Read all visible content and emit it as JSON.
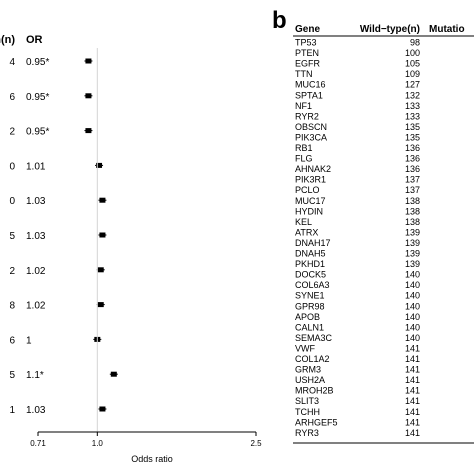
{
  "chart_data": [
    {
      "type": "scatter",
      "panel": "",
      "columns": [
        "n(n)",
        "OR"
      ],
      "xlabel": "Odds ratio",
      "x_ticks": [
        "0.71",
        "1.0",
        "2.5"
      ],
      "x_tick_values": [
        0.71,
        1.0,
        2.5
      ],
      "xscale": "log",
      "xlim": [
        0.71,
        2.5
      ],
      "reference_line": 1.0,
      "rows": [
        {
          "n": "4",
          "or_label": "0.95*",
          "or": 0.95
        },
        {
          "n": "6",
          "or_label": "0.95*",
          "or": 0.95
        },
        {
          "n": "2",
          "or_label": "0.95*",
          "or": 0.95
        },
        {
          "n": "0",
          "or_label": "1.01",
          "or": 1.01
        },
        {
          "n": "0",
          "or_label": "1.03",
          "or": 1.03
        },
        {
          "n": "5",
          "or_label": "1.03",
          "or": 1.03
        },
        {
          "n": "2",
          "or_label": "1.02",
          "or": 1.02
        },
        {
          "n": "8",
          "or_label": "1.02",
          "or": 1.02
        },
        {
          "n": "6",
          "or_label": "1",
          "or": 1.0
        },
        {
          "n": "5",
          "or_label": "1.1*",
          "or": 1.1
        },
        {
          "n": "1",
          "or_label": "1.03",
          "or": 1.03
        }
      ]
    },
    {
      "type": "table",
      "panel": "b",
      "columns": [
        "Gene",
        "Wild−type(n)",
        "Mutatio"
      ],
      "rows": [
        [
          "TP53",
          "98"
        ],
        [
          "PTEN",
          "100"
        ],
        [
          "EGFR",
          "105"
        ],
        [
          "TTN",
          "109"
        ],
        [
          "MUC16",
          "127"
        ],
        [
          "SPTA1",
          "132"
        ],
        [
          "NF1",
          "133"
        ],
        [
          "RYR2",
          "133"
        ],
        [
          "OBSCN",
          "135"
        ],
        [
          "PIK3CA",
          "135"
        ],
        [
          "RB1",
          "136"
        ],
        [
          "FLG",
          "136"
        ],
        [
          "AHNAK2",
          "136"
        ],
        [
          "PIK3R1",
          "137"
        ],
        [
          "PCLO",
          "137"
        ],
        [
          "MUC17",
          "138"
        ],
        [
          "HYDIN",
          "138"
        ],
        [
          "KEL",
          "138"
        ],
        [
          "ATRX",
          "139"
        ],
        [
          "DNAH17",
          "139"
        ],
        [
          "DNAH5",
          "139"
        ],
        [
          "PKHD1",
          "139"
        ],
        [
          "DOCK5",
          "140"
        ],
        [
          "COL6A3",
          "140"
        ],
        [
          "SYNE1",
          "140"
        ],
        [
          "GPR98",
          "140"
        ],
        [
          "APOB",
          "140"
        ],
        [
          "CALN1",
          "140"
        ],
        [
          "SEMA3C",
          "140"
        ],
        [
          "VWF",
          "141"
        ],
        [
          "COL1A2",
          "141"
        ],
        [
          "GRM3",
          "141"
        ],
        [
          "USH2A",
          "141"
        ],
        [
          "MROH2B",
          "141"
        ],
        [
          "SLIT3",
          "141"
        ],
        [
          "TCHH",
          "141"
        ],
        [
          "ARHGEF5",
          "141"
        ],
        [
          "RYR3",
          "141"
        ]
      ]
    }
  ]
}
